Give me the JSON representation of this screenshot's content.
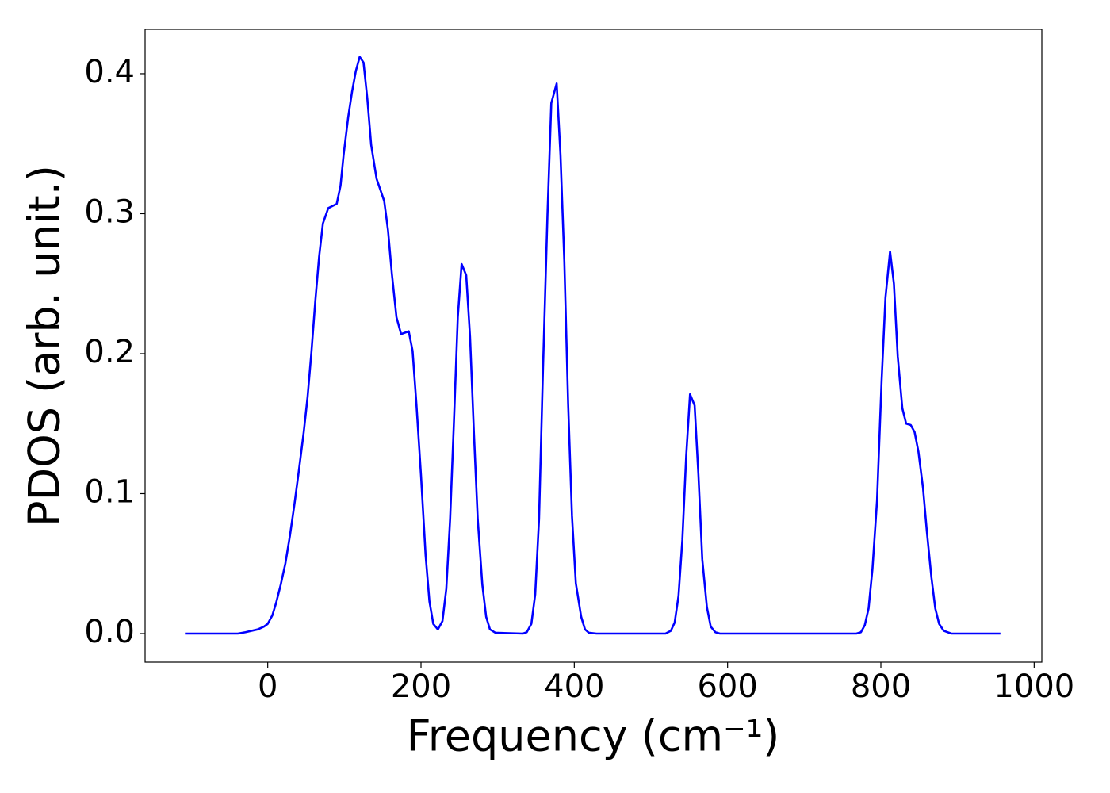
{
  "chart_data": {
    "type": "line",
    "xlabel": "Frequency (cm⁻¹)",
    "ylabel": "PDOS (arb. unit.)",
    "xlim": [
      -160,
      1010
    ],
    "ylim": [
      -0.0204,
      0.4317
    ],
    "xticks": [
      0,
      200,
      400,
      600,
      800,
      1000
    ],
    "yticks": [
      {
        "value": 0,
        "label": "0.0"
      },
      0.1,
      0.2,
      0.3,
      0.4
    ],
    "grid": false,
    "x": [
      -108,
      -39,
      -29,
      -13,
      -5,
      0,
      6,
      11,
      17,
      23,
      29,
      35,
      41,
      47,
      52,
      57,
      62,
      67,
      72,
      79,
      90,
      95,
      99,
      105,
      110,
      115,
      120,
      125,
      130,
      135,
      142,
      147,
      152,
      157,
      162,
      168,
      174,
      184,
      189,
      194,
      200,
      206,
      211,
      216,
      222,
      228,
      233,
      238,
      243,
      248,
      253,
      259,
      264,
      269,
      274,
      280,
      285,
      290,
      297,
      333,
      338,
      344,
      349,
      354,
      359,
      365,
      370,
      377,
      382,
      387,
      392,
      397,
      402,
      409,
      414,
      419,
      429,
      519,
      526,
      531,
      536,
      541,
      546,
      551,
      557,
      562,
      567,
      573,
      578,
      584,
      590,
      768,
      774,
      779,
      784,
      789,
      795,
      801,
      806,
      812,
      817,
      822,
      828,
      833,
      839,
      844,
      849,
      855,
      860,
      866,
      871,
      876,
      882,
      892,
      956
    ],
    "series": [
      {
        "name": "PDOS",
        "color": "#0000ff",
        "values": [
          0,
          0,
          0.001,
          0.003,
          0.005,
          0.007,
          0.013,
          0.022,
          0.035,
          0.05,
          0.07,
          0.093,
          0.118,
          0.144,
          0.169,
          0.201,
          0.237,
          0.269,
          0.293,
          0.304,
          0.307,
          0.32,
          0.342,
          0.369,
          0.387,
          0.402,
          0.412,
          0.408,
          0.382,
          0.349,
          0.325,
          0.317,
          0.309,
          0.288,
          0.257,
          0.226,
          0.214,
          0.216,
          0.202,
          0.164,
          0.113,
          0.056,
          0.023,
          0.007,
          0.003,
          0.009,
          0.032,
          0.082,
          0.152,
          0.226,
          0.264,
          0.256,
          0.212,
          0.144,
          0.082,
          0.035,
          0.012,
          0.003,
          0.0006,
          0,
          0.001,
          0.007,
          0.028,
          0.082,
          0.186,
          0.299,
          0.379,
          0.393,
          0.342,
          0.266,
          0.164,
          0.084,
          0.036,
          0.012,
          0.003,
          0.0006,
          0,
          0,
          0.002,
          0.008,
          0.027,
          0.067,
          0.127,
          0.171,
          0.163,
          0.113,
          0.053,
          0.019,
          0.005,
          0.001,
          0,
          0,
          0.001,
          0.006,
          0.018,
          0.046,
          0.095,
          0.181,
          0.24,
          0.273,
          0.25,
          0.198,
          0.161,
          0.15,
          0.149,
          0.144,
          0.13,
          0.104,
          0.073,
          0.04,
          0.018,
          0.007,
          0.002,
          0,
          0
        ]
      }
    ]
  }
}
